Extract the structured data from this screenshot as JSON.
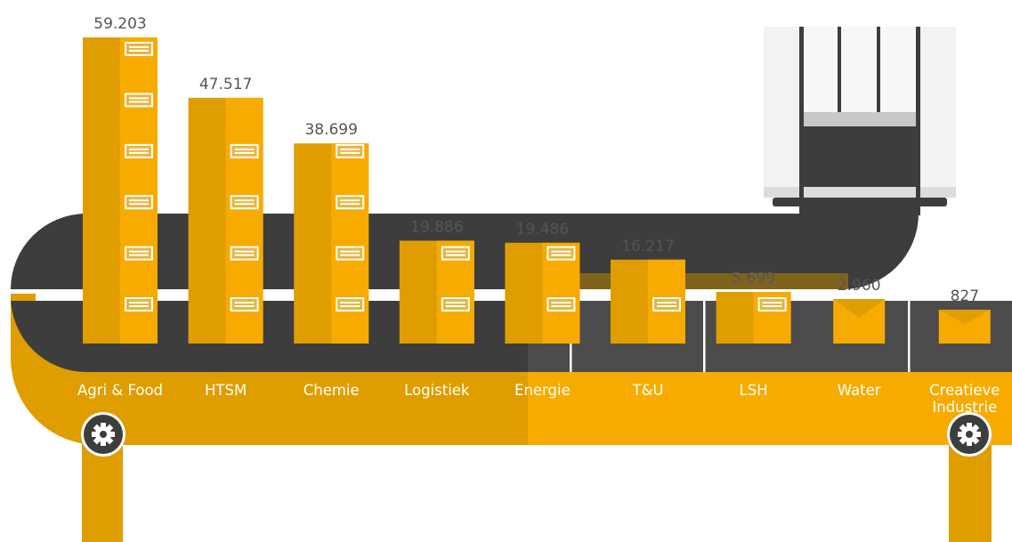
{
  "chart_data": {
    "type": "bar",
    "categories": [
      "Agri & Food",
      "HTSM",
      "Chemie",
      "Logistiek",
      "Energie",
      "T&U",
      "LSH",
      "Water",
      "Creatieve Industrie"
    ],
    "category_lines": [
      [
        "Agri & Food"
      ],
      [
        "HTSM"
      ],
      [
        "Chemie"
      ],
      [
        "Logistiek"
      ],
      [
        "Energie"
      ],
      [
        "T&U"
      ],
      [
        "LSH"
      ],
      [
        "Water"
      ],
      [
        "Creatieve",
        "Industrie"
      ]
    ],
    "values": [
      59203,
      47517,
      38699,
      19886,
      19486,
      16217,
      5699,
      2960,
      827
    ],
    "value_labels": [
      "59.203",
      "47.517",
      "38.699",
      "19.886",
      "19.486",
      "16.217",
      "5.699",
      "2.960",
      "827"
    ],
    "item_shape": [
      "cabinet",
      "cabinet",
      "cabinet",
      "cabinet",
      "cabinet",
      "cabinet",
      "cabinet",
      "envelope",
      "envelope"
    ],
    "ylim": [
      0,
      59203
    ],
    "grid": false,
    "legend": "none"
  },
  "colors": {
    "accent": "#f7ab00",
    "accent_dark": "#e09d00",
    "belt": "#3d3d3d",
    "belt_light": "#4c4c4c",
    "value_text": "#555555",
    "label_text": "#ffffff",
    "machine": "#f2f2f2"
  },
  "icons": {
    "gear": "gear-icon"
  }
}
